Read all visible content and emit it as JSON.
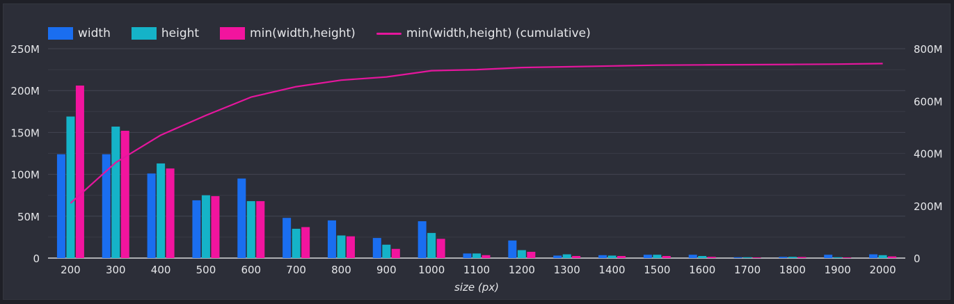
{
  "chart_data": {
    "type": "bar",
    "categories": [
      "200",
      "300",
      "400",
      "500",
      "600",
      "700",
      "800",
      "900",
      "1000",
      "1100",
      "1200",
      "1300",
      "1400",
      "1500",
      "1600",
      "1700",
      "1800",
      "1900",
      "2000"
    ],
    "xlabel": "size (px)",
    "ylim": [
      0,
      250000000
    ],
    "y2lim": [
      0,
      800000000
    ],
    "yticks": [
      "0",
      "50M",
      "100M",
      "150M",
      "200M",
      "250M"
    ],
    "y2ticks": [
      "0",
      "200M",
      "400M",
      "600M",
      "800M"
    ],
    "series": [
      {
        "name": "width",
        "color": "#1a6ef0",
        "type": "bar",
        "values": [
          124,
          124,
          101,
          69,
          95,
          48,
          45,
          24,
          44,
          5.5,
          21,
          3,
          3.5,
          4,
          4,
          1,
          1.5,
          4,
          4.5
        ]
      },
      {
        "name": "height",
        "color": "#15b3c8",
        "type": "bar",
        "values": [
          169,
          157,
          113,
          75,
          68,
          35,
          27,
          16,
          30,
          5.5,
          9.5,
          4.5,
          3,
          4,
          2.5,
          1,
          1.5,
          1,
          3.5
        ]
      },
      {
        "name": "min(width,height)",
        "color": "#f2149e",
        "type": "bar",
        "values": [
          206,
          152,
          107,
          74,
          68,
          37,
          26,
          11,
          23,
          3.5,
          7.5,
          2.5,
          2.5,
          2.5,
          1.5,
          0.8,
          1.3,
          0.8,
          2
        ]
      },
      {
        "name": "min(width,height) (cumulative)",
        "color": "#e5169d",
        "type": "line",
        "axis": "right",
        "values": [
          210,
          365,
          470,
          545,
          615,
          655,
          680,
          692,
          716,
          720,
          728,
          731,
          734,
          737,
          738,
          739,
          740,
          741,
          743
        ]
      }
    ],
    "units": "M"
  }
}
